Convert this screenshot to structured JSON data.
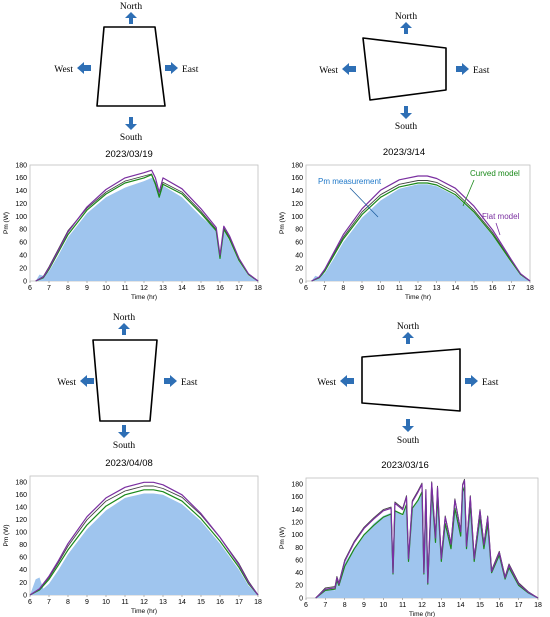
{
  "colors": {
    "measurement_fill": "#9fc5ee",
    "curved_model": "#1b8a1b",
    "flat_model": "#7a2fa0",
    "gray_line": "#444444",
    "arrow": "#2e6fb5",
    "annot_measurement": "#1f78c8",
    "annot_curved": "#1b8a1b",
    "annot_flat": "#7a2fa0"
  },
  "compass": {
    "north": "North",
    "south": "South",
    "west": "West",
    "east": "East"
  },
  "panels": [
    {
      "id": "p1",
      "date": "2023/03/19",
      "shape": "tapered-vertical",
      "icons": [
        "arrow-up-icon",
        "arrow-down-icon",
        "arrow-left-icon",
        "arrow-right-icon"
      ]
    },
    {
      "id": "p2",
      "date": "2023/3/14",
      "shape": "tapered-horizontal",
      "icons": [
        "arrow-up-icon",
        "arrow-down-icon",
        "arrow-left-icon",
        "arrow-right-icon"
      ]
    },
    {
      "id": "p3",
      "date": "2023/04/08",
      "shape": "tapered-vertical",
      "icons": [
        "arrow-up-icon",
        "arrow-down-icon",
        "arrow-left-icon",
        "arrow-right-icon"
      ]
    },
    {
      "id": "p4",
      "date": "2023/03/16",
      "shape": "tapered-horizontal",
      "icons": [
        "arrow-up-icon",
        "arrow-down-icon",
        "arrow-left-icon",
        "arrow-right-icon"
      ]
    }
  ],
  "annotations": {
    "pm_measurement": "Pm measurement",
    "curved_model": "Curved model",
    "flat_model": "Flat model"
  },
  "chart_data": [
    {
      "type": "area",
      "date": "2023/03/19",
      "xlabel": "Time (hr)",
      "ylabel": "Pm (W)",
      "xlim": [
        6,
        18
      ],
      "ylim": [
        0,
        180
      ],
      "xticks": [
        6,
        7,
        8,
        9,
        10,
        11,
        12,
        13,
        14,
        15,
        16,
        17,
        18
      ],
      "yticks": [
        0,
        20,
        40,
        60,
        80,
        100,
        120,
        140,
        160,
        180
      ],
      "series": [
        {
          "name": "measurement",
          "x": [
            6.3,
            6.5,
            6.7,
            7,
            7.5,
            8,
            9,
            10,
            11,
            12,
            12.4,
            12.6,
            12.8,
            13,
            14,
            15,
            15.8,
            16,
            16.2,
            16.5,
            17,
            17.5,
            18
          ],
          "y": [
            0,
            10,
            8,
            15,
            40,
            68,
            105,
            130,
            145,
            155,
            160,
            155,
            140,
            148,
            130,
            100,
            80,
            40,
            78,
            62,
            30,
            8,
            0
          ]
        },
        {
          "name": "curved model",
          "x": [
            6.3,
            6.7,
            7,
            7.5,
            8,
            9,
            10,
            11,
            12,
            12.4,
            12.6,
            12.8,
            13,
            14,
            15,
            15.8,
            16,
            16.2,
            16.5,
            17,
            17.5,
            18
          ],
          "y": [
            0,
            5,
            18,
            45,
            72,
            110,
            135,
            152,
            160,
            165,
            150,
            130,
            150,
            135,
            105,
            78,
            35,
            80,
            65,
            32,
            10,
            0
          ]
        },
        {
          "name": "flat model",
          "x": [
            6.3,
            6.7,
            7,
            7.5,
            8,
            9,
            10,
            11,
            12,
            12.4,
            12.6,
            12.8,
            13,
            14,
            15,
            15.8,
            16,
            16.2,
            16.5,
            17,
            17.5,
            18
          ],
          "y": [
            0,
            6,
            20,
            48,
            76,
            115,
            142,
            160,
            168,
            172,
            160,
            138,
            160,
            143,
            112,
            83,
            40,
            85,
            70,
            35,
            11,
            0
          ]
        },
        {
          "name": "gray",
          "x": [
            6.3,
            6.7,
            7,
            7.5,
            8,
            9,
            10,
            11,
            12,
            12.4,
            12.6,
            12.8,
            13,
            14,
            15,
            15.8,
            16,
            16.2,
            16.5,
            17,
            17.5,
            18
          ],
          "y": [
            0,
            7,
            22,
            50,
            78,
            113,
            138,
            155,
            163,
            166,
            152,
            132,
            153,
            138,
            108,
            80,
            38,
            82,
            67,
            34,
            11,
            0
          ]
        }
      ]
    },
    {
      "type": "area",
      "date": "2023/3/14",
      "xlabel": "Time (hr)",
      "ylabel": "Pm (W)",
      "xlim": [
        6,
        18
      ],
      "ylim": [
        0,
        180
      ],
      "xticks": [
        6,
        7,
        8,
        9,
        10,
        11,
        12,
        13,
        14,
        15,
        16,
        17,
        18
      ],
      "yticks": [
        0,
        20,
        40,
        60,
        80,
        100,
        120,
        140,
        160,
        180
      ],
      "series": [
        {
          "name": "measurement",
          "x": [
            6.3,
            6.5,
            6.7,
            7,
            7.5,
            8,
            9,
            10,
            11,
            12,
            12.5,
            13,
            14,
            15,
            16,
            17,
            17.5,
            18
          ],
          "y": [
            0,
            8,
            6,
            12,
            35,
            60,
            98,
            125,
            143,
            150,
            150,
            147,
            132,
            105,
            70,
            28,
            8,
            0
          ]
        },
        {
          "name": "curved model",
          "x": [
            6.3,
            6.7,
            7,
            7.5,
            8,
            9,
            10,
            11,
            12,
            12.5,
            13,
            14,
            15,
            16,
            17,
            17.5,
            18
          ],
          "y": [
            0,
            5,
            15,
            40,
            65,
            103,
            130,
            146,
            152,
            152,
            149,
            134,
            107,
            72,
            30,
            10,
            0
          ]
        },
        {
          "name": "flat model",
          "x": [
            6.3,
            6.7,
            7,
            7.5,
            8,
            9,
            10,
            11,
            12,
            12.5,
            13,
            14,
            15,
            16,
            17,
            17.5,
            18
          ],
          "y": [
            0,
            6,
            18,
            45,
            72,
            112,
            141,
            157,
            163,
            163,
            159,
            144,
            116,
            79,
            33,
            11,
            0
          ]
        },
        {
          "name": "gray",
          "x": [
            6.3,
            6.7,
            7,
            7.5,
            8,
            9,
            10,
            11,
            12,
            12.5,
            13,
            14,
            15,
            16,
            17,
            17.5,
            18
          ],
          "y": [
            0,
            6,
            17,
            43,
            68,
            107,
            134,
            150,
            156,
            156,
            153,
            138,
            110,
            75,
            31,
            10,
            0
          ]
        }
      ]
    },
    {
      "type": "area",
      "date": "2023/04/08",
      "xlabel": "Time (hr)",
      "ylabel": "Pm (W)",
      "xlim": [
        6,
        18
      ],
      "ylim": [
        0,
        190
      ],
      "xticks": [
        6,
        7,
        8,
        9,
        10,
        11,
        12,
        13,
        14,
        15,
        16,
        17,
        18
      ],
      "yticks": [
        0,
        20,
        40,
        60,
        80,
        100,
        120,
        140,
        160,
        180
      ],
      "series": [
        {
          "name": "measurement",
          "x": [
            6,
            6.3,
            6.5,
            6.7,
            7,
            7.5,
            8,
            9,
            10,
            11,
            12,
            12.5,
            13,
            14,
            15,
            16,
            17,
            17.5,
            18
          ],
          "y": [
            0,
            25,
            28,
            10,
            18,
            40,
            65,
            105,
            135,
            155,
            162,
            162,
            160,
            145,
            118,
            82,
            40,
            15,
            0
          ]
        },
        {
          "name": "curved model",
          "x": [
            6,
            6.5,
            7,
            7.5,
            8,
            9,
            10,
            11,
            12,
            12.5,
            13,
            14,
            15,
            16,
            17,
            17.5,
            18
          ],
          "y": [
            0,
            8,
            25,
            48,
            72,
            112,
            142,
            160,
            168,
            168,
            165,
            150,
            122,
            86,
            44,
            18,
            0
          ]
        },
        {
          "name": "flat model",
          "x": [
            6,
            6.5,
            7,
            7.5,
            8,
            9,
            10,
            11,
            12,
            12.5,
            13,
            14,
            15,
            16,
            17,
            17.5,
            18
          ],
          "y": [
            0,
            10,
            30,
            55,
            82,
            125,
            155,
            172,
            180,
            180,
            176,
            160,
            130,
            92,
            48,
            20,
            0
          ]
        },
        {
          "name": "gray",
          "x": [
            6,
            6.5,
            7,
            7.5,
            8,
            9,
            10,
            11,
            12,
            12.5,
            13,
            14,
            15,
            16,
            17,
            17.5,
            18
          ],
          "y": [
            0,
            9,
            28,
            52,
            78,
            120,
            150,
            166,
            174,
            174,
            170,
            156,
            128,
            92,
            50,
            22,
            0
          ]
        }
      ]
    },
    {
      "type": "area",
      "date": "2023/03/16",
      "xlabel": "Time (hr)",
      "ylabel": "Pm (W)",
      "xlim": [
        6,
        18
      ],
      "ylim": [
        0,
        190
      ],
      "xticks": [
        6,
        7,
        8,
        9,
        10,
        11,
        12,
        13,
        14,
        15,
        16,
        17,
        18
      ],
      "yticks": [
        0,
        20,
        40,
        60,
        80,
        100,
        120,
        140,
        160,
        180
      ],
      "series": [
        {
          "name": "measurement",
          "x": [
            6.5,
            7,
            7.5,
            7.6,
            7.7,
            8,
            8.5,
            9,
            9.5,
            10,
            10.4,
            10.5,
            10.6,
            11,
            11.2,
            11.3,
            11.5,
            11.8,
            12,
            12.1,
            12.2,
            12.3,
            12.5,
            12.7,
            12.8,
            13,
            13.2,
            13.5,
            13.7,
            14,
            14.1,
            14.2,
            14.3,
            14.5,
            14.7,
            15,
            15.2,
            15.4,
            15.6,
            16,
            16.3,
            16.5,
            17,
            17.5,
            18
          ],
          "y": [
            0,
            15,
            12,
            30,
            18,
            55,
            80,
            100,
            118,
            130,
            135,
            40,
            140,
            130,
            150,
            60,
            140,
            155,
            170,
            40,
            160,
            20,
            175,
            90,
            165,
            60,
            120,
            80,
            145,
            100,
            170,
            180,
            80,
            150,
            60,
            130,
            80,
            120,
            40,
            70,
            30,
            50,
            20,
            8,
            0
          ]
        },
        {
          "name": "curved model",
          "x": [
            6.5,
            7,
            7.5,
            7.6,
            7.7,
            8,
            8.5,
            9,
            9.5,
            10,
            10.4,
            10.5,
            10.6,
            11,
            11.2,
            11.3,
            11.5,
            11.8,
            12,
            12.1,
            12.2,
            12.3,
            12.5,
            12.7,
            12.8,
            13,
            13.2,
            13.5,
            13.7,
            14,
            14.1,
            14.2,
            14.3,
            14.5,
            14.7,
            15,
            15.2,
            15.4,
            15.6,
            16,
            16.3,
            16.5,
            17,
            17.5,
            18
          ],
          "y": [
            0,
            12,
            14,
            28,
            20,
            50,
            78,
            100,
            115,
            128,
            133,
            38,
            138,
            132,
            148,
            58,
            142,
            155,
            168,
            38,
            158,
            22,
            172,
            88,
            162,
            58,
            118,
            78,
            142,
            98,
            168,
            176,
            78,
            148,
            58,
            128,
            78,
            118,
            40,
            68,
            30,
            48,
            20,
            8,
            0
          ]
        },
        {
          "name": "flat model",
          "x": [
            6.5,
            7,
            7.5,
            7.6,
            7.7,
            8,
            8.5,
            9,
            9.5,
            10,
            10.4,
            10.5,
            10.6,
            11,
            11.2,
            11.3,
            11.5,
            11.8,
            12,
            12.1,
            12.2,
            12.3,
            12.5,
            12.7,
            12.8,
            13,
            13.2,
            13.5,
            13.7,
            14,
            14.1,
            14.2,
            14.3,
            14.5,
            14.7,
            15,
            15.2,
            15.4,
            15.6,
            16,
            16.3,
            16.5,
            17,
            17.5,
            18
          ],
          "y": [
            0,
            14,
            16,
            32,
            22,
            58,
            88,
            110,
            125,
            138,
            142,
            40,
            150,
            140,
            160,
            62,
            152,
            168,
            180,
            40,
            170,
            24,
            182,
            95,
            175,
            62,
            128,
            85,
            155,
            105,
            178,
            186,
            82,
            160,
            62,
            138,
            84,
            128,
            42,
            72,
            32,
            52,
            22,
            9,
            0
          ]
        },
        {
          "name": "gray",
          "x": [
            6.5,
            7,
            7.5,
            7.6,
            7.7,
            8,
            8.5,
            9,
            9.5,
            10,
            10.4,
            10.5,
            10.6,
            11,
            11.2,
            11.3,
            11.5,
            11.8,
            12,
            12.1,
            12.2,
            12.3,
            12.5,
            12.7,
            12.8,
            13,
            13.2,
            13.5,
            13.7,
            14,
            14.1,
            14.2,
            14.3,
            14.5,
            14.7,
            15,
            15.2,
            15.4,
            15.6,
            16,
            16.3,
            16.5,
            17,
            17.5,
            18
          ],
          "y": [
            0,
            16,
            18,
            34,
            24,
            60,
            90,
            112,
            127,
            140,
            144,
            42,
            152,
            142,
            162,
            64,
            154,
            170,
            182,
            42,
            172,
            26,
            184,
            97,
            177,
            64,
            130,
            87,
            157,
            107,
            180,
            188,
            84,
            162,
            64,
            140,
            86,
            130,
            44,
            74,
            34,
            54,
            24,
            10,
            0
          ]
        }
      ]
    }
  ]
}
